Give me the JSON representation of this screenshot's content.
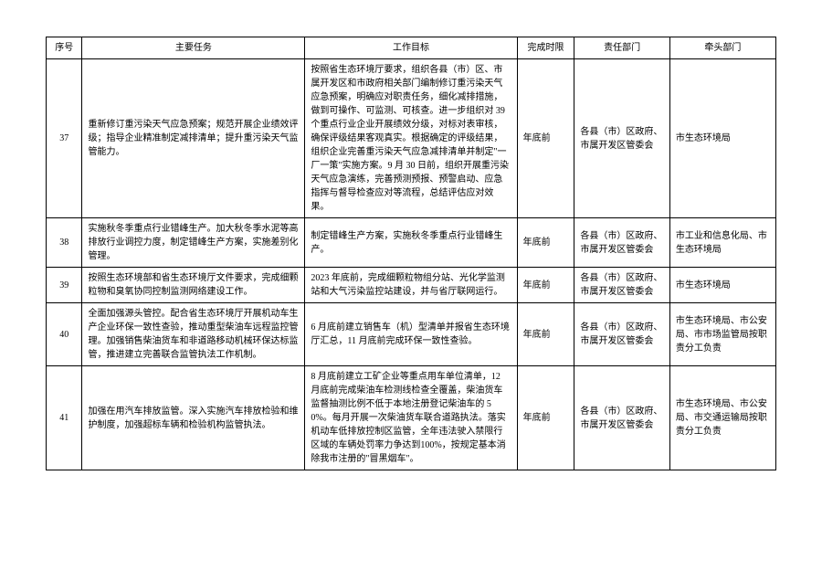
{
  "headers": {
    "seq": "序号",
    "task": "主要任务",
    "goal": "工作目标",
    "deadline": "完成时限",
    "dept": "责任部门",
    "lead": "牵头部门"
  },
  "rows": [
    {
      "seq": "37",
      "task": "重新修订重污染天气应急预案；规范开展企业绩效评级；指导企业精准制定减排清单；提升重污染天气监管能力。",
      "goal": "按照省生态环境厅要求，组织各县（市）区、市属开发区和市政府相关部门编制修订重污染天气应急预案，明确应对职责任务，细化减排措施，做到可操作、可监测、可核查。进一步组织对 39 个重点行业企业开展绩效分级，对标对表审核，确保评级结果客观真实。根据确定的评级结果，组织企业完善重污染天气应急减排清单并制定\"一厂一策\"实施方案。9 月 30 日前，组织开展重污染天气应急演练，完善预测预报、预警启动、应急指挥与督导检查应对等流程，总结评估应对效果。",
      "deadline": "年底前",
      "dept": "各县（市）区政府、市属开发区管委会",
      "lead": "市生态环境局"
    },
    {
      "seq": "38",
      "task": "实施秋冬季重点行业错峰生产。加大秋冬季水泥等高排放行业调控力度，制定错峰生产方案，实施差别化管理。",
      "goal": "制定错峰生产方案，实施秋冬季重点行业错峰生产。",
      "deadline": "年底前",
      "dept": "各县（市）区政府、市属开发区管委会",
      "lead": "市工业和信息化局、市生态环境局"
    },
    {
      "seq": "39",
      "task": "按照生态环境部和省生态环境厅文件要求，完成细颗粒物和臭氧协同控制监测网络建设工作。",
      "goal": "2023 年底前，完成细颗粒物组分站、光化学监测站和大气污染监控站建设，并与省厅联网运行。",
      "deadline": "年底前",
      "dept": "各县（市）区政府、市属开发区管委会",
      "lead": "市生态环境局"
    },
    {
      "seq": "40",
      "task": "全面加强源头管控。配合省生态环境厅开展机动车生产企业环保一致性查验，推动重型柴油车远程监控管理。加强销售柴油货车和非道路移动机械环保达标监管，推进建立完善联合监管执法工作机制。",
      "goal": "6 月底前建立销售车（机）型清单并报省生态环境厅汇总，11 月底前完成环保一致性查验。",
      "deadline": "年底前",
      "dept": "各县（市）区政府、市属开发区管委会",
      "lead": "市生态环境局、市公安局、市市场监管局按职责分工负责"
    },
    {
      "seq": "41",
      "task": "加强在用汽车排放监管。深入实施汽车排放检验和维护制度，加强超标车辆和检验机构监管执法。",
      "goal": "8 月底前建立工矿企业等重点用车单位清单，12 月底前完成柴油车检测线检查全覆盖，柴油货车监督抽测比例不低于本地注册登记柴油车的 50%。每月开展一次柴油货车联合道路执法。落实机动车低排放控制区监管，全年违法驶入禁限行区域的车辆处罚率力争达到100%，按规定基本消除我市注册的\"冒黑烟车\"。",
      "deadline": "年底前",
      "dept": "各县（市）区政府、市属开发区管委会",
      "lead": "市生态环境局、市公安局、市交通运输局按职责分工负责"
    }
  ]
}
